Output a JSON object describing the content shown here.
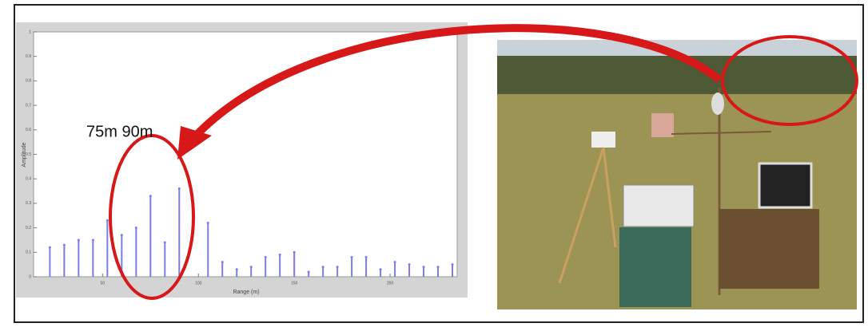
{
  "chart_data": {
    "type": "stem",
    "xlabel": "Range (m)",
    "ylabel": "Amplitude",
    "annotation": "75m 90m",
    "x": [
      22.5,
      30,
      37.5,
      45,
      52.5,
      60,
      67.5,
      75,
      82.5,
      90,
      105,
      112.5,
      120,
      127.5,
      135,
      142.5,
      150,
      157.5,
      165,
      172.5,
      180,
      187.5,
      195,
      202.5,
      210,
      217.5,
      225,
      232.5
    ],
    "values": [
      0.12,
      0.13,
      0.15,
      0.15,
      0.23,
      0.17,
      0.2,
      0.33,
      0.14,
      0.36,
      0.22,
      0.06,
      0.03,
      0.04,
      0.08,
      0.09,
      0.1,
      0.02,
      0.04,
      0.04,
      0.08,
      0.08,
      0.03,
      0.06,
      0.05,
      0.04,
      0.04,
      0.05
    ],
    "color": "#7b7bef",
    "xlim": [
      14,
      235
    ],
    "ylim": [
      0,
      1
    ],
    "xticks": [
      50,
      100,
      150,
      200
    ],
    "yticks": [
      0,
      0.1,
      0.2,
      0.3,
      0.4,
      0.5,
      0.6,
      0.7,
      0.8,
      0.9,
      1
    ]
  }
}
